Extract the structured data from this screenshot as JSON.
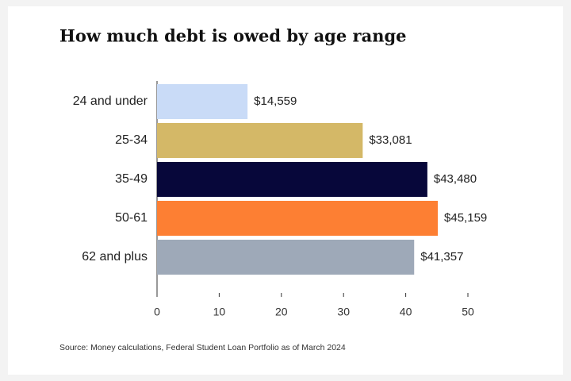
{
  "chart_data": {
    "type": "bar",
    "orientation": "horizontal",
    "title": "How much debt is owed by age range",
    "categories": [
      "24 and under",
      "25-34",
      "35-49",
      "50-61",
      "62 and plus"
    ],
    "values": [
      14.559,
      33.081,
      43.48,
      45.159,
      41.357
    ],
    "value_labels": [
      "$14,559",
      "$33,081",
      "$43,480",
      "$45,159",
      "$41,357"
    ],
    "colors": [
      "#c9dbf7",
      "#d4b867",
      "#07073a",
      "#fd7f33",
      "#9ea9b8"
    ],
    "xlim": [
      0,
      50
    ],
    "xticks": [
      0,
      10,
      20,
      30,
      40,
      50
    ],
    "source": "Source: Money calculations, Federal Student Loan Portfolio as of March 2024"
  }
}
